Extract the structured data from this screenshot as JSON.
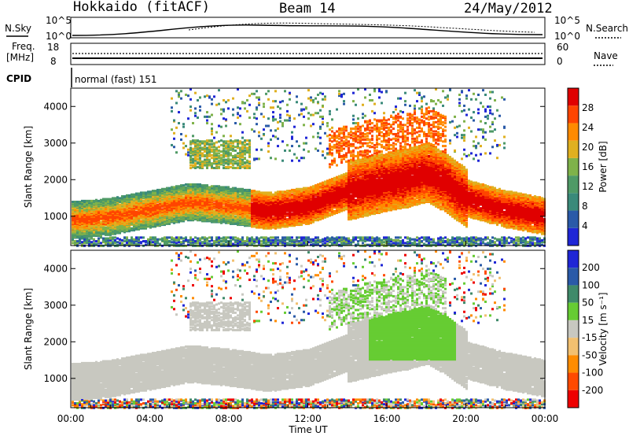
{
  "header": {
    "station": "Hokkaido (fitACF)",
    "beam": "Beam 14",
    "date": "24/May/2012"
  },
  "strips": {
    "nsky_label": "N.Sky",
    "nsky_tick_top": "10^5",
    "nsky_tick_bottom": "10^0",
    "nsearch_label": "N.Search",
    "freq_label_1": "Freq.",
    "freq_label_2": "[MHz]",
    "freq_tick_top": "18",
    "freq_tick_bottom": "8",
    "nave_tick_top": "60",
    "nave_tick_bottom": "0",
    "nave_label": "Nave",
    "cpid_label": "CPID",
    "cpid_value": "normal (fast) 151"
  },
  "colors": {
    "power": [
      "#1f26d6",
      "#2a5aa8",
      "#3a8a7a",
      "#4f9a66",
      "#7fb24a",
      "#e0b020",
      "#ff8a00",
      "#ff4500",
      "#e00000"
    ],
    "velocity": [
      "#1f26d6",
      "#2a5aa8",
      "#3f8a6a",
      "#66cc33",
      "#c8c8c0",
      "#f2c070",
      "#ff8c00",
      "#ff4a00",
      "#ee0000"
    ]
  },
  "chart_data": [
    {
      "type": "heatmap",
      "name": "power",
      "xlabel": "",
      "ylabel": "Slant Range [km]",
      "yticks": [
        "1000",
        "2000",
        "3000",
        "4000"
      ],
      "ylim": [
        200,
        4500
      ],
      "xlim_hours": [
        0,
        24
      ],
      "colorbar": {
        "label": "Power [dB]",
        "ticks": [
          "4",
          "8",
          "12",
          "16",
          "20",
          "24",
          "28"
        ],
        "range": [
          0,
          32
        ]
      },
      "main_band": {
        "hours": [
          0,
          2,
          4,
          6,
          8,
          10,
          12,
          14,
          16,
          17,
          18,
          19,
          20,
          22,
          24
        ],
        "range_km": [
          900,
          1000,
          1200,
          1400,
          1300,
          1150,
          1300,
          1700,
          1950,
          2050,
          2200,
          1900,
          1500,
          1200,
          1000
        ]
      }
    },
    {
      "type": "heatmap",
      "name": "velocity",
      "xlabel": "Time UT",
      "ylabel": "Slant Range [km]",
      "yticks": [
        "1000",
        "2000",
        "3000",
        "4000"
      ],
      "ylim": [
        200,
        4500
      ],
      "xlim_hours": [
        0,
        24
      ],
      "xticks": [
        "00:00",
        "04:00",
        "08:00",
        "12:00",
        "16:00",
        "20:00",
        "00:00"
      ],
      "colorbar": {
        "label": "Velocity [m s⁻¹]",
        "ticks": [
          "200",
          "100",
          "50",
          "15",
          "-15",
          "-50",
          "-100",
          "-200"
        ]
      }
    }
  ]
}
